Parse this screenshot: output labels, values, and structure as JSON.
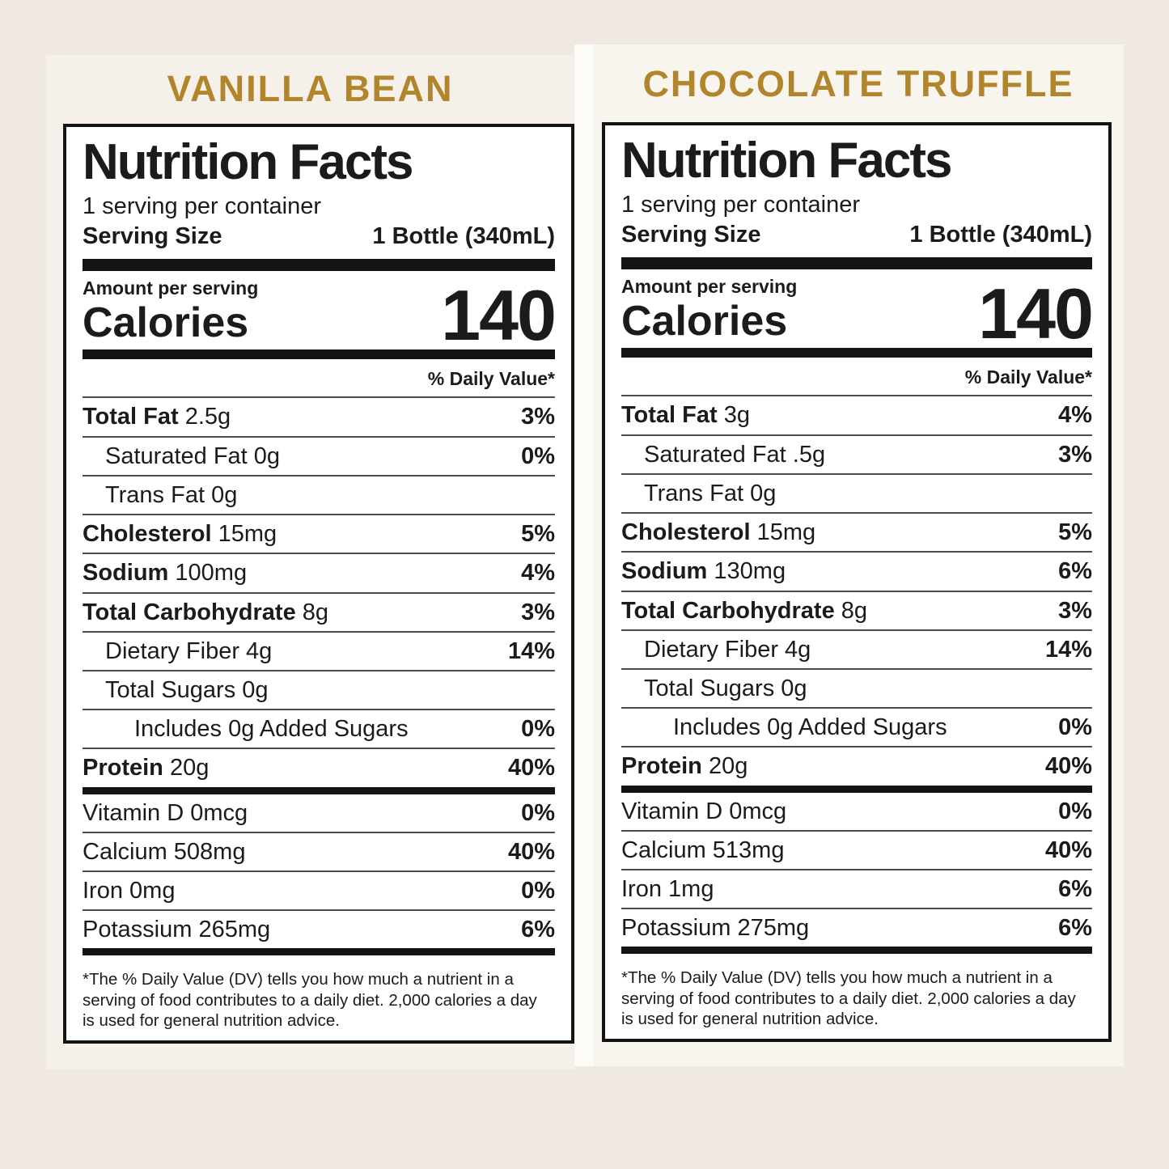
{
  "colors": {
    "page_background": "#efe9e2",
    "card_background_left": "#f5f1ea",
    "card_background_right": "#f8f4ee",
    "accent_gold": "#b1852c",
    "label_text": "#1b1b1b"
  },
  "labels": [
    {
      "title": "VANILLA BEAN",
      "heading": "Nutrition Facts",
      "servings_per_container": "1 serving per container",
      "serving_size_label": "Serving Size",
      "serving_size_value": "1 Bottle (340mL)",
      "amount_per_serving": "Amount per serving",
      "calories_label": "Calories",
      "calories_value": "140",
      "daily_value_header": "% Daily Value*",
      "rows": [
        {
          "bold": "Total Fat",
          "text": "2.5g",
          "pct": "3%",
          "indent": 0
        },
        {
          "bold": "",
          "text": "Saturated Fat 0g",
          "pct": "0%",
          "indent": 1
        },
        {
          "bold": "",
          "text": "Trans Fat 0g",
          "pct": "",
          "indent": 1
        },
        {
          "bold": "Cholesterol",
          "text": "15mg",
          "pct": "5%",
          "indent": 0
        },
        {
          "bold": "Sodium",
          "text": "100mg",
          "pct": "4%",
          "indent": 0
        },
        {
          "bold": "Total Carbohydrate",
          "text": "8g",
          "pct": "3%",
          "indent": 0
        },
        {
          "bold": "",
          "text": "Dietary Fiber 4g",
          "pct": "14%",
          "indent": 1
        },
        {
          "bold": "",
          "text": "Total Sugars 0g",
          "pct": "",
          "indent": 1
        },
        {
          "bold": "",
          "text": "Includes 0g Added Sugars",
          "pct": "0%",
          "indent": 2
        },
        {
          "bold": "Protein",
          "text": "20g",
          "pct": "40%",
          "indent": 0
        }
      ],
      "vitamins": [
        {
          "bold": "",
          "text": "Vitamin D 0mcg",
          "pct": "0%",
          "indent": 0
        },
        {
          "bold": "",
          "text": "Calcium 508mg",
          "pct": "40%",
          "indent": 0
        },
        {
          "bold": "",
          "text": "Iron 0mg",
          "pct": "0%",
          "indent": 0
        },
        {
          "bold": "",
          "text": "Potassium 265mg",
          "pct": "6%",
          "indent": 0
        }
      ],
      "footnote": "*The % Daily Value (DV) tells you how much a nutrient in a serving of food contributes to a daily diet. 2,000 calories a day is used for general nutrition advice."
    },
    {
      "title": "CHOCOLATE TRUFFLE",
      "heading": "Nutrition Facts",
      "servings_per_container": "1 serving per container",
      "serving_size_label": "Serving Size",
      "serving_size_value": "1 Bottle (340mL)",
      "amount_per_serving": "Amount per serving",
      "calories_label": "Calories",
      "calories_value": "140",
      "daily_value_header": "% Daily Value*",
      "rows": [
        {
          "bold": "Total Fat",
          "text": "3g",
          "pct": "4%",
          "indent": 0
        },
        {
          "bold": "",
          "text": "Saturated Fat .5g",
          "pct": "3%",
          "indent": 1
        },
        {
          "bold": "",
          "text": "Trans Fat 0g",
          "pct": "",
          "indent": 1
        },
        {
          "bold": "Cholesterol",
          "text": "15mg",
          "pct": "5%",
          "indent": 0
        },
        {
          "bold": "Sodium",
          "text": "130mg",
          "pct": "6%",
          "indent": 0
        },
        {
          "bold": "Total Carbohydrate",
          "text": "8g",
          "pct": "3%",
          "indent": 0
        },
        {
          "bold": "",
          "text": "Dietary Fiber 4g",
          "pct": "14%",
          "indent": 1
        },
        {
          "bold": "",
          "text": "Total Sugars 0g",
          "pct": "",
          "indent": 1
        },
        {
          "bold": "",
          "text": "Includes 0g Added Sugars",
          "pct": "0%",
          "indent": 2
        },
        {
          "bold": "Protein",
          "text": "20g",
          "pct": "40%",
          "indent": 0
        }
      ],
      "vitamins": [
        {
          "bold": "",
          "text": "Vitamin D 0mcg",
          "pct": "0%",
          "indent": 0
        },
        {
          "bold": "",
          "text": "Calcium 513mg",
          "pct": "40%",
          "indent": 0
        },
        {
          "bold": "",
          "text": "Iron 1mg",
          "pct": "6%",
          "indent": 0
        },
        {
          "bold": "",
          "text": "Potassium 275mg",
          "pct": "6%",
          "indent": 0
        }
      ],
      "footnote": "*The % Daily Value (DV) tells you how much a nutrient in a serving of food contributes to a daily diet. 2,000 calories a day is used for general nutrition advice."
    }
  ]
}
